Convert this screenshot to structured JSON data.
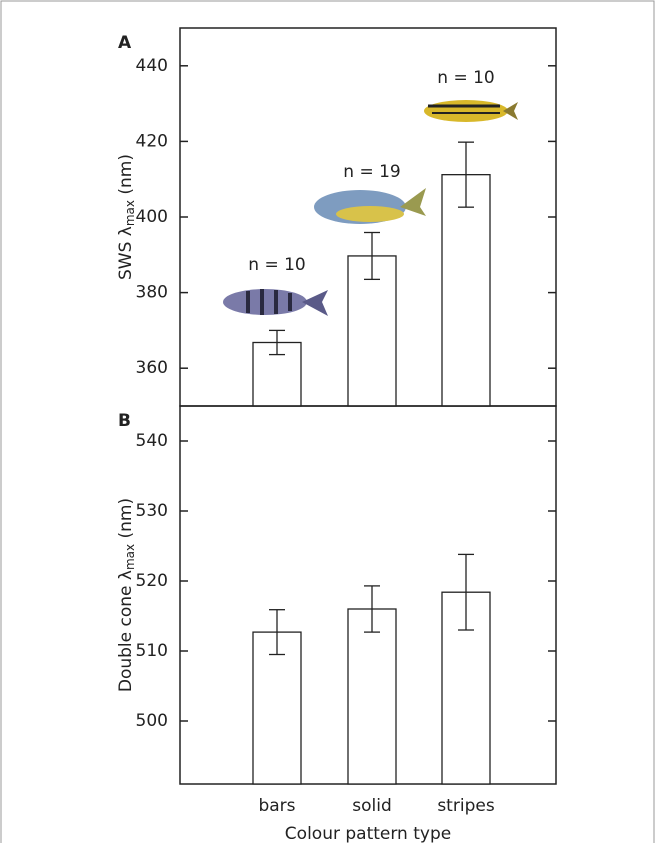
{
  "chart_data": [
    {
      "type": "bar",
      "panel_label": "A",
      "ylabel": [
        "SWS λ",
        "max",
        " (nm)"
      ],
      "values": [
        366.8,
        389.7,
        411.2
      ],
      "errors": [
        3.2,
        6.2,
        8.6
      ],
      "annotations": [
        "n = 10",
        "n = 19",
        "n = 10"
      ],
      "ylim": [
        350,
        450
      ],
      "yticks": [
        360,
        380,
        400,
        420,
        440
      ],
      "color": "#ffffff"
    },
    {
      "type": "bar",
      "panel_label": "B",
      "ylabel": [
        "Double cone λ",
        "max",
        " (nm)"
      ],
      "xlabel": "Colour pattern type",
      "categories": [
        "bars",
        "solid",
        "stripes"
      ],
      "values": [
        512.7,
        516.0,
        518.4
      ],
      "errors": [
        3.2,
        3.3,
        5.4
      ],
      "ylim": [
        491,
        545
      ],
      "yticks": [
        500,
        510,
        520,
        530,
        540
      ],
      "color": "#ffffff"
    }
  ]
}
